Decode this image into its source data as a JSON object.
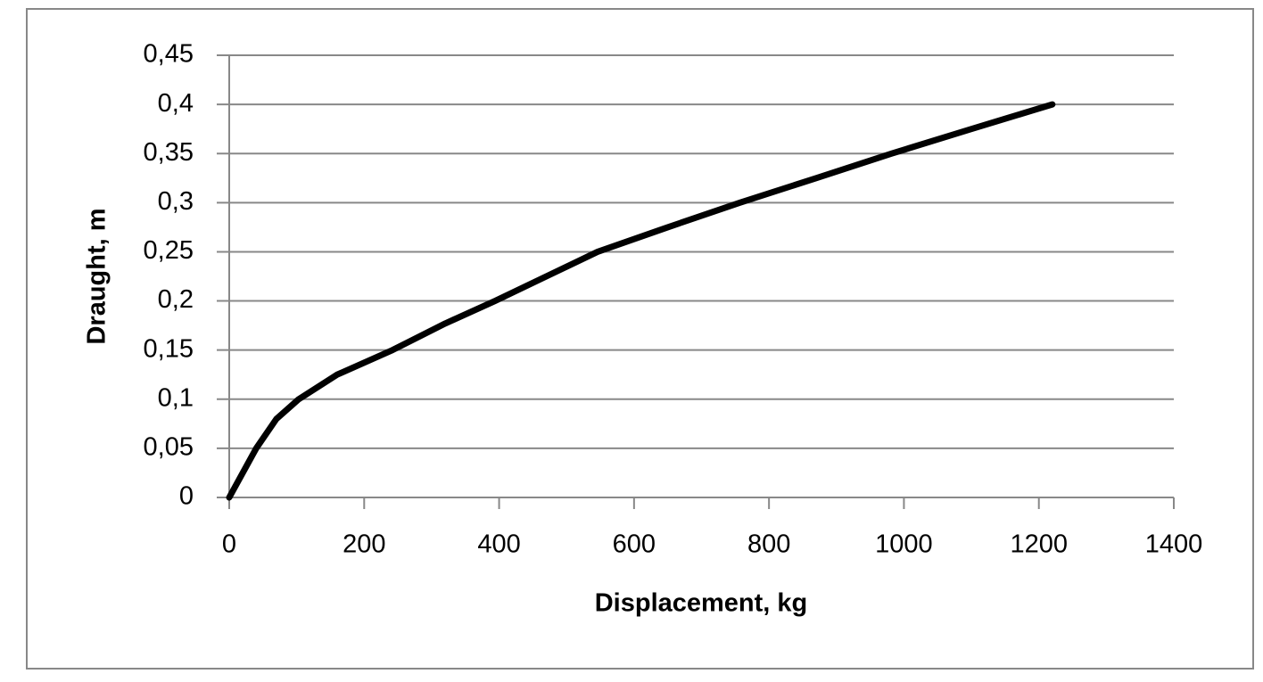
{
  "chart_data": {
    "type": "line",
    "x_label": "Displacement, kg",
    "y_label": "Draught, m",
    "x": [
      0,
      20,
      40,
      70,
      103,
      160,
      242,
      320,
      394,
      470,
      546,
      650,
      757,
      870,
      982,
      1100,
      1220
    ],
    "series": [
      {
        "color": "#000000",
        "values": [
          0,
          0.025,
          0.05,
          0.08,
          0.1,
          0.125,
          0.15,
          0.177,
          0.2,
          0.225,
          0.25,
          0.275,
          0.3,
          0.325,
          0.35,
          0.375,
          0.4
        ]
      }
    ],
    "xlim": [
      0,
      1400
    ],
    "xticks": [
      0,
      200,
      400,
      600,
      800,
      1000,
      1200,
      1400
    ],
    "ylim": [
      0,
      0.45
    ],
    "yticks": [
      0,
      {
        "value": 0.05,
        "label": "0,05"
      },
      {
        "value": 0.1,
        "label": "0,1"
      },
      {
        "value": 0.15,
        "label": "0,15"
      },
      {
        "value": 0.2,
        "label": "0,2"
      },
      {
        "value": 0.25,
        "label": "0,25"
      },
      {
        "value": 0.3,
        "label": "0,3"
      },
      {
        "value": 0.35,
        "label": "0,35"
      },
      {
        "value": 0.4,
        "label": "0,4"
      },
      {
        "value": 0.45,
        "label": "0,45"
      }
    ],
    "grid": true
  }
}
